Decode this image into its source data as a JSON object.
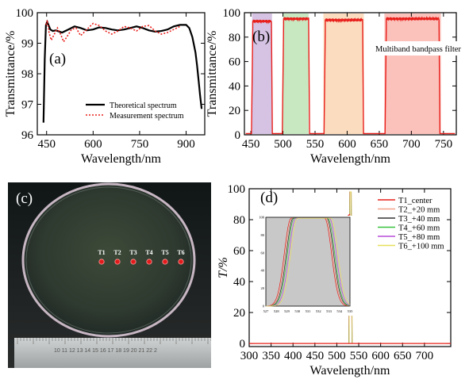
{
  "panels": {
    "a": {
      "label": "(a)"
    },
    "b": {
      "label": "(b)"
    },
    "c": {
      "label": "(c)",
      "points": [
        "T1",
        "T2",
        "T3",
        "T4",
        "T5",
        "T6"
      ],
      "ruler_text": "10 11 12 13 14 15 16 17 18 19 20 21 22 2"
    },
    "d": {
      "label": "(d)"
    }
  },
  "colors": {
    "theory": "#000000",
    "measure": "#e8201c",
    "band_purple": "#d6c3e4",
    "band_green": "#c8e8c2",
    "band_peach": "#fbdcbf",
    "band_pink": "#fbc1bb",
    "inset_bg": "#c8c8c8",
    "d_series": [
      "#e8201c",
      "#f4a58a",
      "#333333",
      "#36c23b",
      "#b84bd8",
      "#e8e05a"
    ]
  },
  "chart_data": [
    {
      "id": "a",
      "type": "line",
      "xlabel": "Wavelength/nm",
      "ylabel": "Transmittance/%",
      "xlim": [
        420,
        960
      ],
      "ylim": [
        96,
        100
      ],
      "xticks": [
        450,
        600,
        750,
        900
      ],
      "yticks": [
        96,
        97,
        98,
        99,
        100
      ],
      "legend_position": "bottom-right",
      "series": [
        {
          "name": "Theoretical spectrum",
          "style": "solid",
          "x": [
            440,
            444,
            448,
            452,
            456,
            462,
            470,
            480,
            500,
            520,
            540,
            560,
            580,
            600,
            620,
            640,
            660,
            680,
            700,
            720,
            740,
            760,
            780,
            800,
            820,
            840,
            860,
            880,
            900,
            910,
            920,
            930,
            935,
            940,
            945,
            950
          ],
          "y": [
            96.4,
            98.5,
            99.6,
            99.7,
            99.6,
            99.45,
            99.4,
            99.42,
            99.35,
            99.45,
            99.55,
            99.5,
            99.42,
            99.45,
            99.52,
            99.5,
            99.45,
            99.42,
            99.45,
            99.5,
            99.55,
            99.5,
            99.42,
            99.38,
            99.4,
            99.45,
            99.55,
            99.6,
            99.6,
            99.5,
            99.2,
            98.7,
            98.3,
            97.8,
            97.3,
            96.85
          ]
        },
        {
          "name": "Measurement spectrum",
          "style": "dotted",
          "x": [
            448,
            452,
            458,
            465,
            475,
            485,
            495,
            505,
            515,
            530,
            545,
            560,
            580,
            600,
            620,
            640,
            660,
            680,
            700,
            720,
            740,
            760,
            780,
            800,
            820,
            840,
            860,
            880
          ],
          "y": [
            99.6,
            99.75,
            99.35,
            99.1,
            99.3,
            99.5,
            99.3,
            99.05,
            99.2,
            99.45,
            99.5,
            99.25,
            99.45,
            99.65,
            99.58,
            99.4,
            99.3,
            99.4,
            99.55,
            99.5,
            99.4,
            99.55,
            99.58,
            99.4,
            99.3,
            99.35,
            99.45,
            99.55
          ]
        }
      ]
    },
    {
      "id": "b",
      "type": "line",
      "xlabel": "Wavelength/nm",
      "ylabel": "Transmittance/%",
      "xlim": [
        440,
        770
      ],
      "ylim": [
        0,
        100
      ],
      "xticks": [
        450,
        500,
        550,
        600,
        650,
        700,
        750
      ],
      "yticks": [
        0,
        20,
        40,
        60,
        80,
        100
      ],
      "annotation": "Multiband bandpass filter",
      "bands": [
        {
          "from": 452,
          "to": 483,
          "color": "band_purple"
        },
        {
          "from": 500,
          "to": 540,
          "color": "band_green"
        },
        {
          "from": 563,
          "to": 626,
          "color": "band_peach"
        },
        {
          "from": 658,
          "to": 746,
          "color": "band_pink"
        }
      ],
      "series": [
        {
          "passbands": [
            [
              453,
              482,
              93
            ],
            [
              501,
              540,
              95
            ],
            [
              566,
              624,
              94
            ],
            [
              661,
              743,
              95
            ]
          ],
          "floor": 1
        }
      ]
    },
    {
      "id": "d",
      "type": "line",
      "xlabel": "Wavelength/nm",
      "ylabel": "T/%",
      "xlim": [
        300,
        760
      ],
      "ylim": [
        -2,
        100
      ],
      "xticks": [
        300,
        350,
        400,
        450,
        500,
        550,
        600,
        650,
        700
      ],
      "yticks": [
        0,
        20,
        40,
        60,
        80,
        100
      ],
      "legend_position": "top-right",
      "series": [
        {
          "name": "T1_center",
          "center": 531.0
        },
        {
          "name": "T2_+20 mm",
          "center": 531.1
        },
        {
          "name": "T3_+40 mm",
          "center": 531.2
        },
        {
          "name": "T4_+60 mm",
          "center": 531.3
        },
        {
          "name": "T5_+80 mm",
          "center": 531.45
        },
        {
          "name": "T6_+100 mm",
          "center": 531.6
        }
      ],
      "inset": {
        "xlim": [
          527,
          535
        ],
        "ylim": [
          0,
          100
        ],
        "xticks": [
          527,
          528,
          529,
          530,
          531,
          532,
          533,
          534,
          535
        ],
        "yticks": [
          0,
          20,
          40,
          60,
          80,
          100
        ]
      }
    }
  ]
}
